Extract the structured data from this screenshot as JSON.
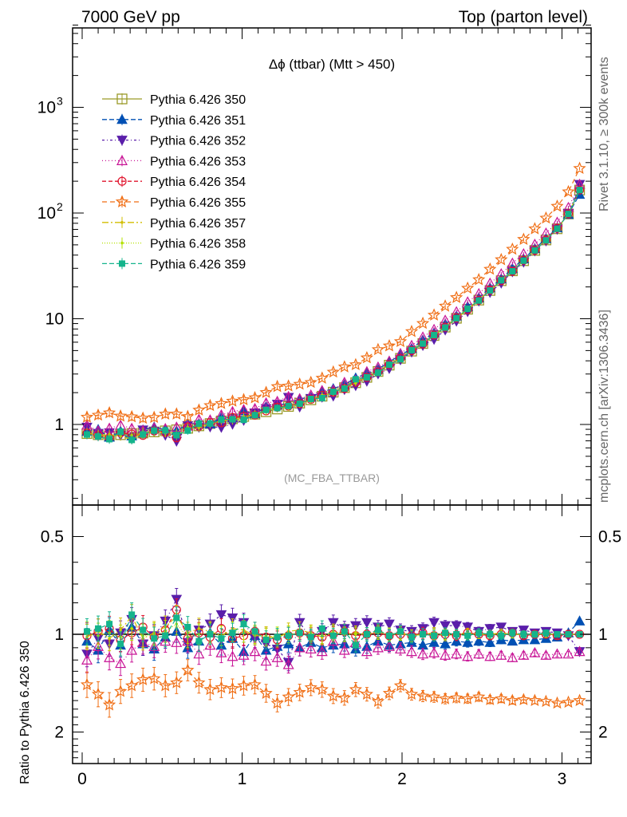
{
  "header": {
    "left": "7000 GeV pp",
    "right": "Top (parton level)",
    "title": "Δϕ (ttbar) (Mtt > 450)",
    "analysis": "(MC_FBA_TTBAR)",
    "side_top": "Rivet 3.1.10, ≥ 300k events",
    "side_bottom": "mcplots.cern.ch [arXiv:1306.3436]"
  },
  "chart_data": {
    "type": "scatter",
    "x": [
      0.03,
      0.1,
      0.17,
      0.24,
      0.31,
      0.38,
      0.45,
      0.52,
      0.59,
      0.66,
      0.73,
      0.8,
      0.87,
      0.94,
      1.01,
      1.08,
      1.15,
      1.22,
      1.29,
      1.36,
      1.43,
      1.5,
      1.57,
      1.64,
      1.71,
      1.78,
      1.85,
      1.92,
      1.99,
      2.06,
      2.13,
      2.2,
      2.27,
      2.34,
      2.41,
      2.48,
      2.55,
      2.62,
      2.69,
      2.76,
      2.83,
      2.9,
      2.97,
      3.04,
      3.11
    ],
    "main": {
      "ylabel": "",
      "log": true,
      "ylim": [
        0.2,
        6000
      ],
      "xlim": [
        -0.05,
        3.2
      ],
      "ytick_labels": [
        "1",
        "10",
        "10^2",
        "10^3"
      ],
      "reference": [
        0.82,
        0.8,
        0.78,
        0.8,
        0.82,
        0.83,
        0.85,
        0.87,
        0.89,
        0.92,
        0.97,
        1.02,
        1.08,
        1.13,
        1.19,
        1.25,
        1.32,
        1.4,
        1.48,
        1.59,
        1.71,
        1.85,
        2.02,
        2.23,
        2.48,
        2.79,
        3.17,
        3.64,
        4.22,
        4.94,
        5.83,
        6.94,
        8.33,
        10.1,
        12.3,
        15.0,
        18.5,
        22.9,
        28.4,
        35.4,
        44.3,
        55.6,
        71.0,
        98.0,
        165.0
      ]
    },
    "ratio": {
      "ylabel": "Ratio to Pythia 6.426 350",
      "ylim": [
        0.4,
        2.5
      ],
      "ytick_labels": [
        "0.5",
        "1",
        "2"
      ],
      "band_color": "#f5f500"
    },
    "series": [
      {
        "name": "Pythia 6.426 350",
        "color": "#9a9a28",
        "marker": "square",
        "dash": "solid",
        "ratio": [
          1,
          1,
          1,
          1,
          1,
          1,
          1,
          1,
          1,
          1,
          1,
          1,
          1,
          1,
          1,
          1,
          1,
          1,
          1,
          1,
          1,
          1,
          1,
          1,
          1,
          1,
          1,
          1,
          1,
          1,
          1,
          1,
          1,
          1,
          1,
          1,
          1,
          1,
          1,
          1,
          1,
          1,
          1,
          1,
          1
        ]
      },
      {
        "name": "Pythia 6.426 351",
        "color": "#0050b4",
        "marker": "triangle-up",
        "dash": "6,3",
        "ratio": [
          1.05,
          1.12,
          0.97,
          1.08,
          0.95,
          1.07,
          1.11,
          1.02,
          0.98,
          1.1,
          1.05,
          0.99,
          1.08,
          1.03,
          1.13,
          1.01,
          1.12,
          1.09,
          1.07,
          1.1,
          1.06,
          1.1,
          1.08,
          1.07,
          1.11,
          1.09,
          1.05,
          1.08,
          1.07,
          1.06,
          1.08,
          1.06,
          1.07,
          1.05,
          1.06,
          1.05,
          1.06,
          1.04,
          1.05,
          1.04,
          1.04,
          1.03,
          1.02,
          0.99,
          0.91
        ]
      },
      {
        "name": "Pythia 6.426 352",
        "color": "#5a1eaa",
        "marker": "triangle-down",
        "dash": "3,3,1,3",
        "ratio": [
          1.15,
          1.03,
          1.07,
          0.99,
          0.9,
          1.07,
          1.01,
          0.91,
          0.78,
          1.06,
          0.97,
          0.93,
          0.87,
          0.89,
          0.92,
          1.03,
          1.07,
          1.11,
          1.22,
          0.92,
          1.03,
          0.98,
          0.92,
          0.96,
          0.94,
          0.92,
          0.95,
          0.93,
          0.97,
          0.98,
          0.96,
          0.92,
          0.94,
          0.94,
          0.95,
          0.98,
          0.96,
          0.95,
          0.98,
          0.97,
          0.99,
          0.98,
          0.99,
          1.01,
          1.13
        ]
      },
      {
        "name": "Pythia 6.426 353",
        "color": "#c81496",
        "marker": "triangle-up-open",
        "dash": "1,3",
        "ratio": [
          1.2,
          1.09,
          1.18,
          1.23,
          1.12,
          1.06,
          1.09,
          1.05,
          1.06,
          1.05,
          1.15,
          1.08,
          1.14,
          1.17,
          1.16,
          1.13,
          1.21,
          1.18,
          1.24,
          1.1,
          1.11,
          1.13,
          1.05,
          1.12,
          1.06,
          1.13,
          1.1,
          1.09,
          1.11,
          1.13,
          1.15,
          1.14,
          1.16,
          1.15,
          1.17,
          1.15,
          1.17,
          1.16,
          1.18,
          1.16,
          1.14,
          1.16,
          1.15,
          1.15,
          1.13
        ]
      },
      {
        "name": "Pythia 6.426 354",
        "color": "#e1142d",
        "marker": "circle-open",
        "dash": "5,3",
        "ratio": [
          1.01,
          0.98,
          0.96,
          1.04,
          0.99,
          0.95,
          1.02,
          0.97,
          0.84,
          1.03,
          0.99,
          1.02,
          0.96,
          1.03,
          1.01,
          0.98,
          1.02,
          1.04,
          1.01,
          0.99,
          1.01,
          1.02,
          1.0,
          0.98,
          1.01,
          1.0,
          0.99,
          1.01,
          1.0,
          1.01,
          0.99,
          1.01,
          1.0,
          1.01,
          0.99,
          1.0,
          1.01,
          1.0,
          0.99,
          1.01,
          1.0,
          1.0,
          1.01,
          1.0,
          1.0
        ]
      },
      {
        "name": "Pythia 6.426 355",
        "color": "#f06e14",
        "marker": "star-open",
        "dash": "6,4",
        "ratio": [
          1.43,
          1.53,
          1.65,
          1.5,
          1.44,
          1.38,
          1.37,
          1.44,
          1.41,
          1.29,
          1.41,
          1.48,
          1.46,
          1.47,
          1.44,
          1.43,
          1.52,
          1.63,
          1.56,
          1.51,
          1.46,
          1.48,
          1.55,
          1.57,
          1.48,
          1.53,
          1.61,
          1.52,
          1.44,
          1.53,
          1.55,
          1.56,
          1.58,
          1.57,
          1.58,
          1.56,
          1.59,
          1.58,
          1.6,
          1.59,
          1.6,
          1.61,
          1.63,
          1.62,
          1.6
        ]
      },
      {
        "name": "Pythia 6.426 357",
        "color": "#d2be00",
        "marker": "dot",
        "dash": "8,3,2,3",
        "ratio": [
          1.02,
          0.98,
          1.03,
          0.97,
          0.88,
          1.03,
          0.99,
          0.95,
          0.88,
          0.99,
          0.96,
          0.98,
          1.01,
          0.96,
          0.97,
          1.01,
          1.01,
          1.03,
          0.98,
          0.97,
          0.99,
          1.02,
          0.98,
          1.0,
          0.99,
          1.0,
          0.98,
          1.0,
          0.99,
          1.01,
          1.0,
          0.99,
          1.01,
          1.0,
          0.99,
          1.0,
          1.0,
          0.99,
          1.0,
          1.0,
          1.0,
          1.0,
          1.0,
          1.0,
          1.0
        ]
      },
      {
        "name": "Pythia 6.426 358",
        "color": "#b4e100",
        "marker": "dot",
        "dash": "1,2",
        "ratio": [
          1.0,
          1.01,
          0.99,
          1.02,
          0.96,
          1.01,
          1.0,
          0.98,
          0.93,
          1.02,
          1.0,
          0.99,
          1.01,
          0.98,
          0.99,
          1.0,
          1.02,
          1.01,
          1.0,
          0.99,
          1.0,
          1.01,
          0.99,
          1.0,
          1.0,
          1.0,
          0.99,
          1.0,
          1.0,
          1.01,
          1.0,
          1.0,
          1.0,
          1.0,
          1.0,
          1.0,
          1.0,
          1.0,
          1.0,
          1.0,
          1.0,
          1.0,
          1.0,
          1.0,
          1.0
        ]
      },
      {
        "name": "Pythia 6.426 359",
        "color": "#14b48c",
        "marker": "square-small",
        "dash": "6,3",
        "ratio": [
          0.98,
          0.96,
          0.93,
          1.07,
          0.87,
          0.97,
          1.03,
          1.01,
          0.89,
          0.95,
          1.05,
          1.0,
          1.03,
          0.99,
          0.93,
          0.98,
          1.04,
          1.02,
          1.01,
          0.99,
          1.02,
          0.96,
          1.01,
          0.98,
          1.08,
          1.0,
          0.97,
          1.01,
          0.98,
          1.02,
          1.0,
          1.01,
          0.99,
          1.0,
          1.01,
          0.99,
          1.0,
          1.01,
          0.99,
          1.0,
          1.0,
          0.99,
          1.0,
          1.0,
          1.0
        ]
      }
    ]
  }
}
